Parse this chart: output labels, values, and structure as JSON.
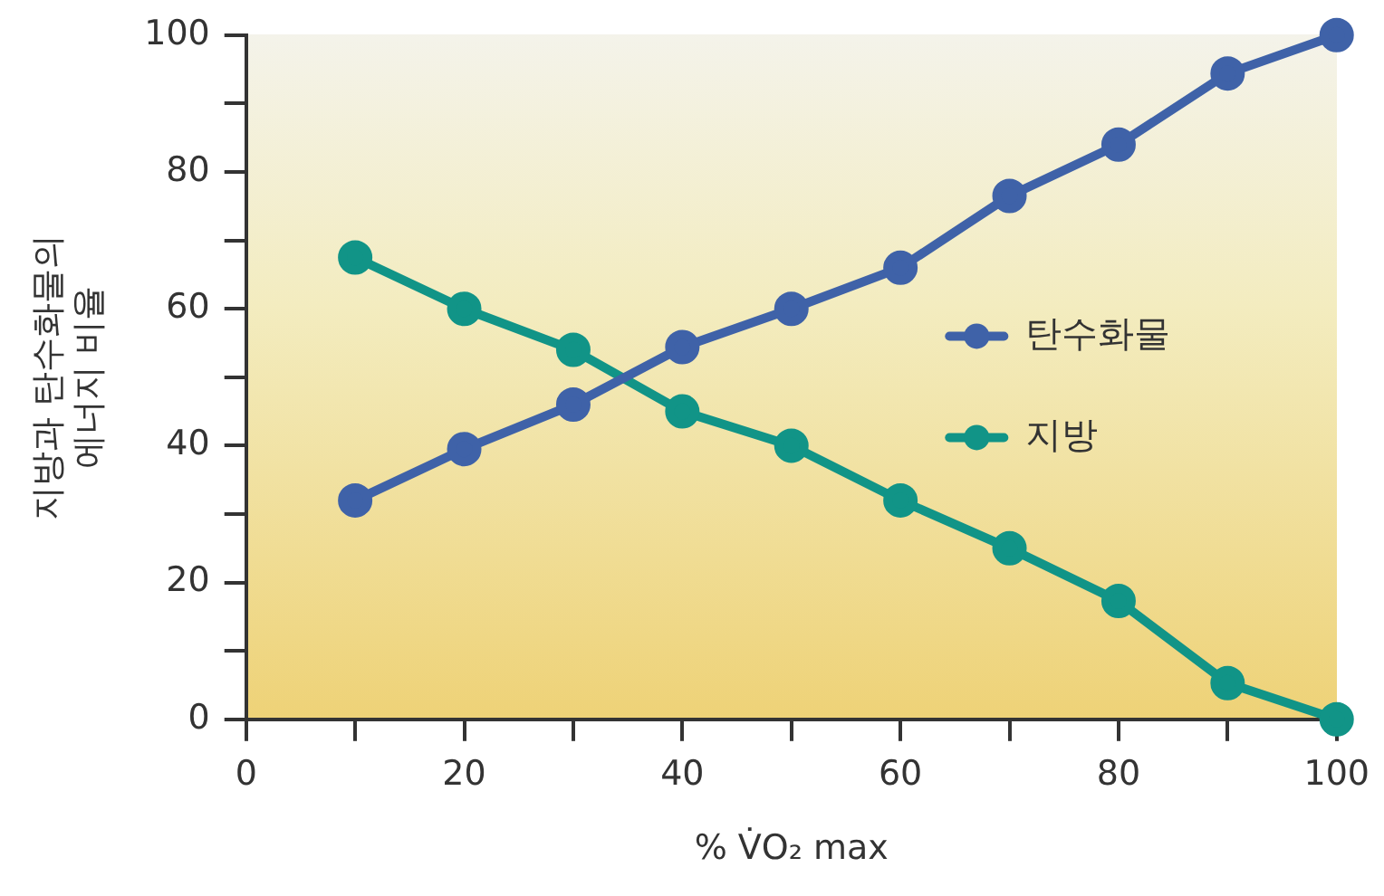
{
  "chart_data": {
    "type": "line",
    "xlabel": "% V̇O₂ max",
    "ylabel": "지방과 탄수화물의\n에너지 비율",
    "x": [
      10,
      20,
      30,
      40,
      50,
      60,
      70,
      80,
      90,
      100
    ],
    "series": [
      {
        "name": "탄수화물",
        "color": "#3f62a8",
        "values": [
          32,
          39.5,
          46,
          54.4,
          60,
          66,
          76.5,
          84,
          94.4,
          100
        ]
      },
      {
        "name": "지방",
        "color": "#119487",
        "values": [
          67.5,
          60,
          54,
          45,
          40,
          32,
          25,
          17.3,
          5.3,
          0
        ]
      }
    ],
    "xlim": [
      0,
      100
    ],
    "xticks": [
      0,
      {
        "value": 10,
        "label": null
      },
      20,
      {
        "value": 30,
        "label": null
      },
      40,
      {
        "value": 50,
        "label": null
      },
      60,
      {
        "value": 70,
        "label": null
      },
      80,
      {
        "value": 90,
        "label": null
      },
      100
    ],
    "ylim": [
      0,
      100
    ],
    "yticks": [
      0,
      {
        "value": 10,
        "label": null
      },
      20,
      {
        "value": 30,
        "label": null
      },
      40,
      {
        "value": 50,
        "label": null
      },
      60,
      {
        "value": 70,
        "label": null
      },
      80,
      {
        "value": 90,
        "label": null
      },
      100
    ],
    "grid": false,
    "legend": "right",
    "marker": "circle",
    "line_style": "solid"
  }
}
